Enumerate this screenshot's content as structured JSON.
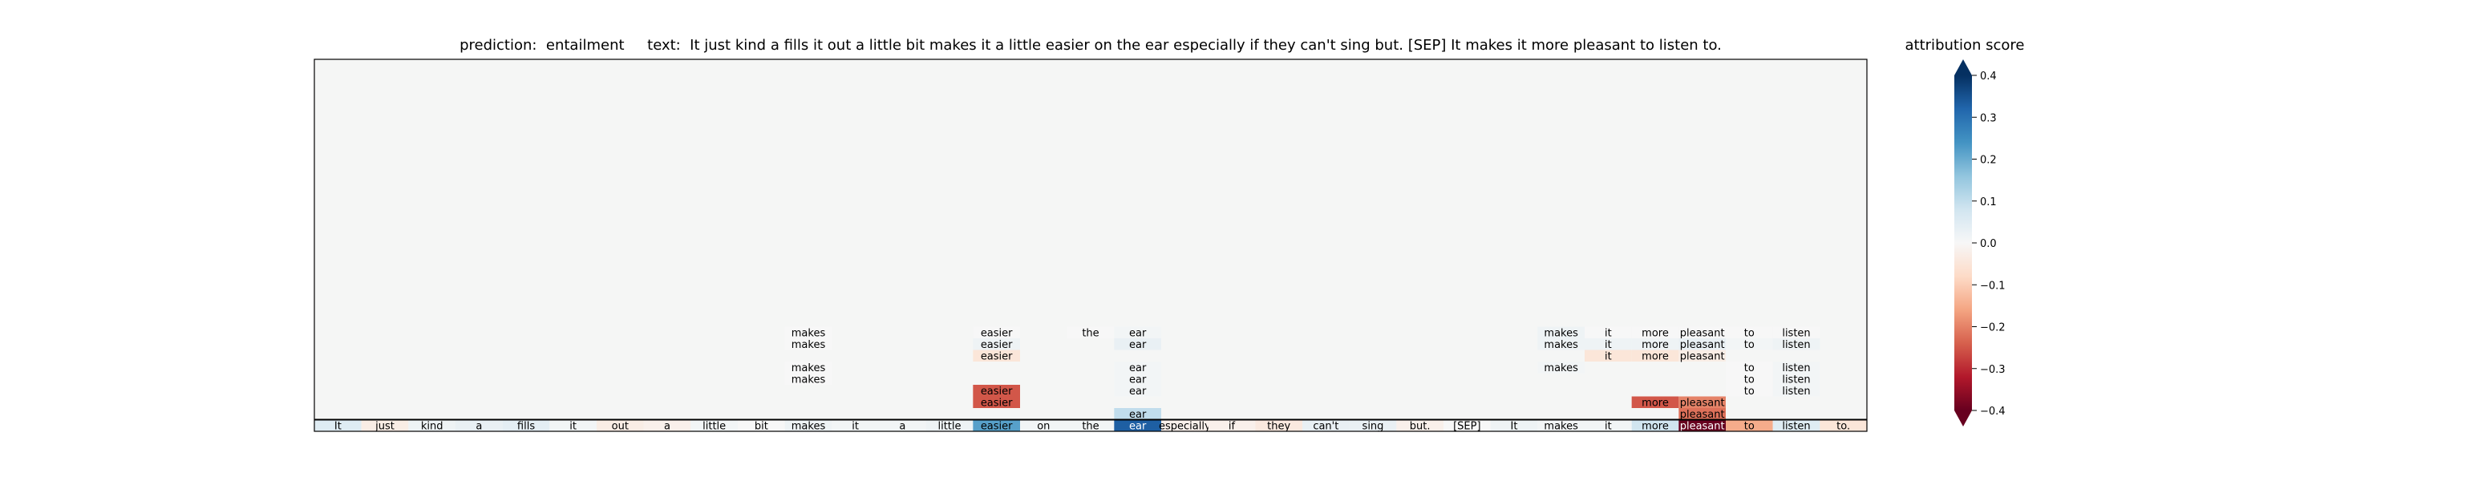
{
  "chart_data": {
    "type": "heatmap",
    "title": "prediction:  entailment     text:  It just kind a fills it out a little bit makes it a little easier on the ear especially if they can't sing but. [SEP] It makes it more pleasant to listen to.",
    "colorbar": {
      "label": "attribution score",
      "range": [
        -0.4,
        0.4
      ],
      "ticks": [
        "0.4",
        "0.3",
        "0.2",
        "0.1",
        "0.0",
        "−0.1",
        "−0.2",
        "−0.3",
        "−0.4"
      ],
      "tick_values": [
        0.4,
        0.3,
        0.2,
        0.1,
        0.0,
        -0.1,
        -0.2,
        -0.3,
        -0.4
      ],
      "colormap": "RdBu",
      "extend": "both"
    },
    "n_rows": 32,
    "tokens": [
      "It",
      "just",
      "kind",
      "a",
      "fills",
      "it",
      "out",
      "a",
      "little",
      "bit",
      "makes",
      "it",
      "a",
      "little",
      "easier",
      "on",
      "the",
      "ear",
      "especially",
      "if",
      "they",
      "can't",
      "sing",
      "but.",
      "[SEP]",
      "It",
      "makes",
      "it",
      "more",
      "pleasant",
      "to",
      "listen",
      "to."
    ],
    "base_row_scores": [
      0.05,
      -0.03,
      0.02,
      0.03,
      0.04,
      0.01,
      -0.03,
      -0.02,
      0.01,
      0.0,
      0.02,
      0.01,
      0.01,
      0.02,
      0.22,
      0.01,
      0.01,
      0.33,
      -0.02,
      -0.02,
      -0.04,
      0.03,
      0.03,
      -0.02,
      0.0,
      0.02,
      0.01,
      0.01,
      0.08,
      -0.42,
      -0.15,
      0.05,
      -0.05
    ],
    "cells": [
      {
        "row": 23,
        "col": 10,
        "text": "makes",
        "score": 0.0
      },
      {
        "row": 24,
        "col": 10,
        "text": "makes",
        "score": 0.0
      },
      {
        "row": 26,
        "col": 10,
        "text": "makes",
        "score": 0.0
      },
      {
        "row": 27,
        "col": 10,
        "text": "makes",
        "score": 0.0
      },
      {
        "row": 23,
        "col": 14,
        "text": "easier",
        "score": 0.0
      },
      {
        "row": 24,
        "col": 14,
        "text": "easier",
        "score": 0.02
      },
      {
        "row": 25,
        "col": 14,
        "text": "easier",
        "score": -0.05
      },
      {
        "row": 28,
        "col": 14,
        "text": "easier",
        "score": -0.25
      },
      {
        "row": 29,
        "col": 14,
        "text": "easier",
        "score": -0.25
      },
      {
        "row": 23,
        "col": 16,
        "text": "the",
        "score": 0.0
      },
      {
        "row": 23,
        "col": 17,
        "text": "ear",
        "score": 0.01
      },
      {
        "row": 24,
        "col": 17,
        "text": "ear",
        "score": 0.03
      },
      {
        "row": 26,
        "col": 17,
        "text": "ear",
        "score": 0.01
      },
      {
        "row": 27,
        "col": 17,
        "text": "ear",
        "score": 0.01
      },
      {
        "row": 28,
        "col": 17,
        "text": "ear",
        "score": 0.01
      },
      {
        "row": 30,
        "col": 17,
        "text": "ear",
        "score": 0.1
      },
      {
        "row": 23,
        "col": 26,
        "text": "makes",
        "score": 0.02
      },
      {
        "row": 24,
        "col": 26,
        "text": "makes",
        "score": 0.02
      },
      {
        "row": 26,
        "col": 26,
        "text": "makes",
        "score": 0.01
      },
      {
        "row": 23,
        "col": 27,
        "text": "it",
        "score": 0.0
      },
      {
        "row": 24,
        "col": 27,
        "text": "it",
        "score": 0.02
      },
      {
        "row": 25,
        "col": 27,
        "text": "it",
        "score": -0.05
      },
      {
        "row": 23,
        "col": 28,
        "text": "more",
        "score": 0.0
      },
      {
        "row": 24,
        "col": 28,
        "text": "more",
        "score": 0.02
      },
      {
        "row": 25,
        "col": 28,
        "text": "more",
        "score": -0.05
      },
      {
        "row": 29,
        "col": 28,
        "text": "more",
        "score": -0.25
      },
      {
        "row": 23,
        "col": 29,
        "text": "pleasant",
        "score": 0.0
      },
      {
        "row": 24,
        "col": 29,
        "text": "pleasant",
        "score": 0.03
      },
      {
        "row": 25,
        "col": 29,
        "text": "pleasant",
        "score": -0.03
      },
      {
        "row": 29,
        "col": 29,
        "text": "pleasant",
        "score": -0.2
      },
      {
        "row": 30,
        "col": 29,
        "text": "pleasant",
        "score": -0.22
      },
      {
        "row": 23,
        "col": 30,
        "text": "to",
        "score": 0.0
      },
      {
        "row": 24,
        "col": 30,
        "text": "to",
        "score": 0.01
      },
      {
        "row": 26,
        "col": 30,
        "text": "to",
        "score": 0.0
      },
      {
        "row": 27,
        "col": 30,
        "text": "to",
        "score": 0.0
      },
      {
        "row": 28,
        "col": 30,
        "text": "to",
        "score": 0.0
      },
      {
        "row": 23,
        "col": 31,
        "text": "listen",
        "score": 0.0
      },
      {
        "row": 24,
        "col": 31,
        "text": "listen",
        "score": 0.02
      },
      {
        "row": 26,
        "col": 31,
        "text": "listen",
        "score": 0.01
      },
      {
        "row": 27,
        "col": 31,
        "text": "listen",
        "score": 0.01
      },
      {
        "row": 28,
        "col": 31,
        "text": "listen",
        "score": 0.01
      },
      {
        "row": 31,
        "col": 31,
        "text": "listen",
        "score": 0.08
      }
    ],
    "grid": false
  },
  "colors": {
    "background": "#f5f6f5",
    "axis": "#000000"
  }
}
